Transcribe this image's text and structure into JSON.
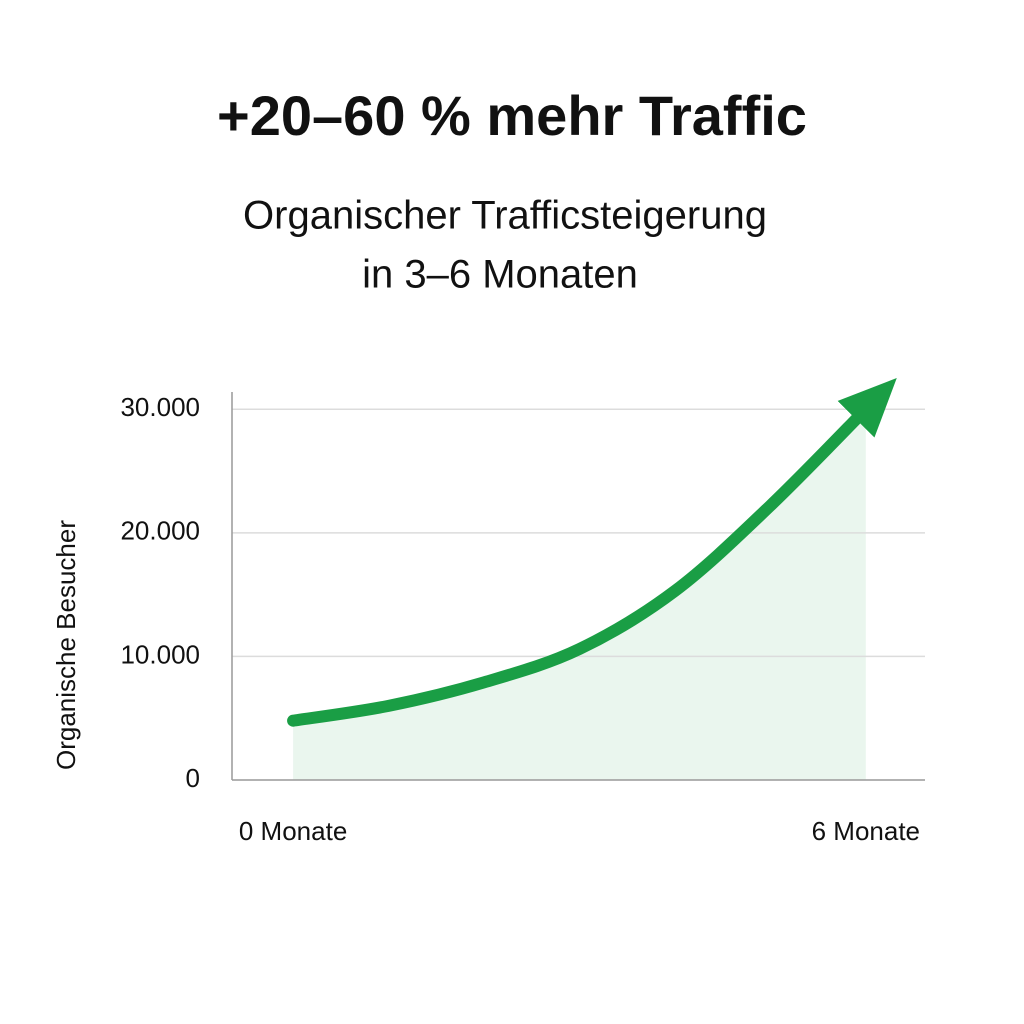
{
  "chart_data": {
    "type": "area",
    "title": "+20–60 % mehr Traffic",
    "subtitle": [
      "Organischer Trafficsteigerung",
      "in 3–6 Monaten"
    ],
    "y_label": "Organische Besucher",
    "x": [
      0,
      1,
      2,
      3,
      4,
      5,
      6
    ],
    "values": [
      4800,
      6000,
      7900,
      10600,
      15300,
      22200,
      30000
    ],
    "color": "#1a9e45",
    "area_color": "#eaf6ee",
    "xlim": [
      -0.64,
      6.62
    ],
    "xticks": [
      {
        "value": 0,
        "label": "0 Monate"
      },
      {
        "value": 6,
        "label": "6 Monate"
      }
    ],
    "ylim": [
      0,
      31400
    ],
    "yticks": [
      0,
      {
        "value": 10000,
        "label": "10.000"
      },
      {
        "value": 20000,
        "label": "20.000"
      },
      {
        "value": 30000,
        "label": "30.000"
      }
    ],
    "grid": true,
    "arrow": true
  }
}
